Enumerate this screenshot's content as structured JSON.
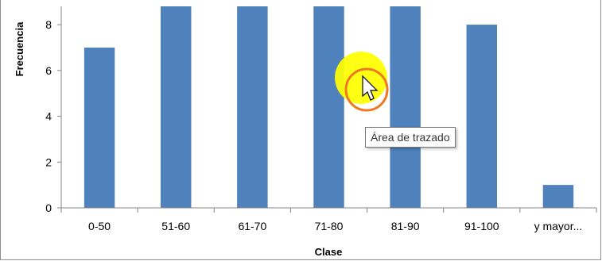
{
  "chart_data": {
    "type": "bar",
    "categories": [
      "0-50",
      "51-60",
      "61-70",
      "71-80",
      "81-90",
      "91-100",
      "y mayor..."
    ],
    "values": [
      7,
      9,
      9,
      9,
      9,
      8,
      1
    ],
    "xlabel": "Clase",
    "ylabel": "Frecuencia",
    "ylim": [
      0,
      8.8
    ],
    "yticks": [
      0,
      2,
      4,
      6,
      8
    ],
    "bar_color": "#4f81bd",
    "grid": false,
    "legend": "none"
  },
  "tooltip": {
    "text": "Área de trazado"
  },
  "cursor": {
    "highlight_color": "#ffff00",
    "ring_color": "#f07820"
  }
}
